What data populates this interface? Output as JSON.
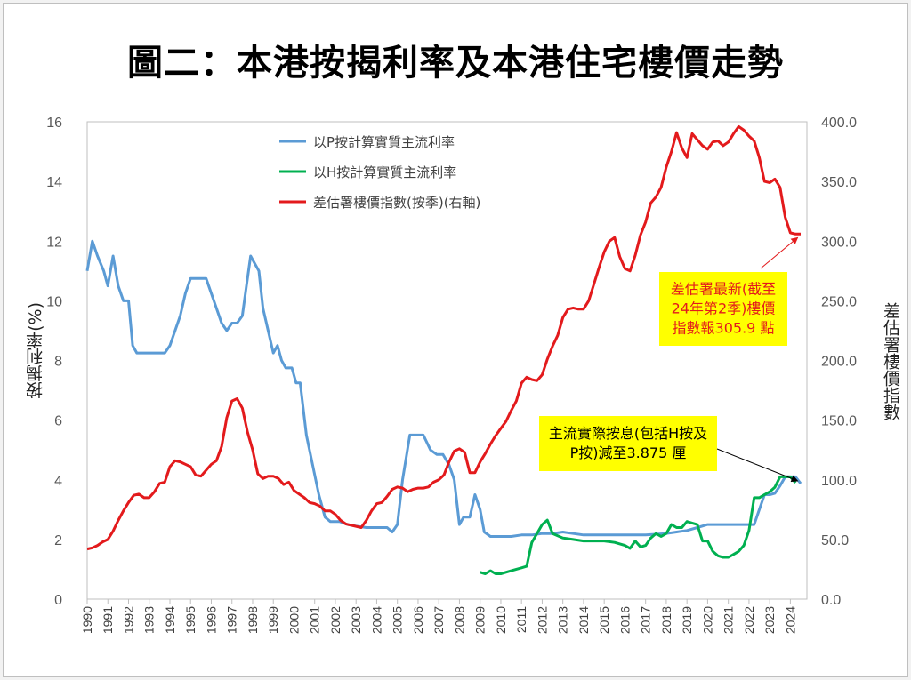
{
  "title": "圖二：本港按揭利率及本港住宅樓價走勢",
  "chart_data": {
    "type": "line",
    "ylabel": "按揭利率(%)",
    "y2label": "差估署樓價指數",
    "ylim": [
      0,
      16
    ],
    "y2lim": [
      0,
      400
    ],
    "yticks": [
      "0",
      "2",
      "4",
      "6",
      "8",
      "10",
      "12",
      "14",
      "16"
    ],
    "y2ticks": [
      "0.0",
      "50.0",
      "100.0",
      "150.0",
      "200.0",
      "250.0",
      "300.0",
      "350.0",
      "400.0"
    ],
    "xlim": [
      1990,
      2024.8
    ],
    "xticks": [
      "1990",
      "1991",
      "1992",
      "1993",
      "1994",
      "1995",
      "1996",
      "1997",
      "1998",
      "1999",
      "2000",
      "2001",
      "2002",
      "2003",
      "2004",
      "2005",
      "2006",
      "2007",
      "2008",
      "2009",
      "2010",
      "2011",
      "2012",
      "2013",
      "2014",
      "2015",
      "2016",
      "2017",
      "2018",
      "2019",
      "2020",
      "2021",
      "2022",
      "2023",
      "2024"
    ],
    "grid": false,
    "legend_position": "top-left",
    "series": [
      {
        "name": "以P按計算實質主流利率",
        "color": "#5b9bd5",
        "axis": "left",
        "points": [
          [
            1990,
            11
          ],
          [
            1990.25,
            12
          ],
          [
            1990.5,
            11.5
          ],
          [
            1990.8,
            11
          ],
          [
            1991,
            10.5
          ],
          [
            1991.25,
            11.5
          ],
          [
            1991.5,
            10.5
          ],
          [
            1991.75,
            10
          ],
          [
            1992,
            10
          ],
          [
            1992.2,
            8.5
          ],
          [
            1992.4,
            8.25
          ],
          [
            1993,
            8.25
          ],
          [
            1993.5,
            8.25
          ],
          [
            1993.75,
            8.25
          ],
          [
            1994,
            8.5
          ],
          [
            1994.5,
            9.5
          ],
          [
            1994.75,
            10.25
          ],
          [
            1995,
            10.75
          ],
          [
            1995.5,
            10.75
          ],
          [
            1995.75,
            10.75
          ],
          [
            1996,
            10.25
          ],
          [
            1996.25,
            9.75
          ],
          [
            1996.5,
            9.25
          ],
          [
            1996.75,
            9
          ],
          [
            1997,
            9.25
          ],
          [
            1997.25,
            9.25
          ],
          [
            1997.5,
            9.5
          ],
          [
            1997.7,
            10.5
          ],
          [
            1997.9,
            11.5
          ],
          [
            1998.1,
            11.25
          ],
          [
            1998.3,
            11
          ],
          [
            1998.5,
            9.75
          ],
          [
            1998.75,
            9
          ],
          [
            1999,
            8.25
          ],
          [
            1999.2,
            8.5
          ],
          [
            1999.4,
            8
          ],
          [
            1999.6,
            7.75
          ],
          [
            1999.9,
            7.75
          ],
          [
            2000.1,
            7.25
          ],
          [
            2000.3,
            7.25
          ],
          [
            2000.6,
            5.5
          ],
          [
            2000.9,
            4.5
          ],
          [
            2001.2,
            3.5
          ],
          [
            2001.5,
            2.75
          ],
          [
            2001.75,
            2.6
          ],
          [
            2002.2,
            2.6
          ],
          [
            2002.6,
            2.5
          ],
          [
            2003,
            2.45
          ],
          [
            2003.5,
            2.4
          ],
          [
            2004,
            2.4
          ],
          [
            2004.5,
            2.4
          ],
          [
            2004.75,
            2.25
          ],
          [
            2005,
            2.5
          ],
          [
            2005.25,
            4
          ],
          [
            2005.6,
            5.5
          ],
          [
            2006,
            5.5
          ],
          [
            2006.25,
            5.5
          ],
          [
            2006.6,
            5.0
          ],
          [
            2006.9,
            4.85
          ],
          [
            2007.2,
            4.85
          ],
          [
            2007.5,
            4.5
          ],
          [
            2007.75,
            4
          ],
          [
            2008,
            2.5
          ],
          [
            2008.2,
            2.75
          ],
          [
            2008.5,
            2.75
          ],
          [
            2008.75,
            3.5
          ],
          [
            2009,
            3
          ],
          [
            2009.2,
            2.25
          ],
          [
            2009.5,
            2.1
          ],
          [
            2010,
            2.1
          ],
          [
            2010.5,
            2.1
          ],
          [
            2011,
            2.15
          ],
          [
            2011.5,
            2.15
          ],
          [
            2012,
            2.2
          ],
          [
            2012.5,
            2.2
          ],
          [
            2013,
            2.25
          ],
          [
            2013.5,
            2.2
          ],
          [
            2014,
            2.15
          ],
          [
            2015,
            2.15
          ],
          [
            2016,
            2.15
          ],
          [
            2017,
            2.15
          ],
          [
            2018,
            2.2
          ],
          [
            2018.5,
            2.25
          ],
          [
            2019,
            2.3
          ],
          [
            2019.5,
            2.4
          ],
          [
            2020,
            2.5
          ],
          [
            2021,
            2.5
          ],
          [
            2022,
            2.5
          ],
          [
            2022.25,
            2.5
          ],
          [
            2022.5,
            3
          ],
          [
            2022.75,
            3.5
          ],
          [
            2023,
            3.5
          ],
          [
            2023.25,
            3.55
          ],
          [
            2023.5,
            3.8
          ],
          [
            2023.75,
            4.1
          ],
          [
            2024,
            4.1
          ],
          [
            2024.25,
            4.1
          ],
          [
            2024.5,
            3.875
          ]
        ]
      },
      {
        "name": "以H按計算實質主流利率",
        "color": "#00b050",
        "axis": "left",
        "points": [
          [
            2009,
            0.9
          ],
          [
            2009.25,
            0.85
          ],
          [
            2009.5,
            0.95
          ],
          [
            2009.75,
            0.85
          ],
          [
            2010,
            0.85
          ],
          [
            2010.5,
            0.95
          ],
          [
            2011,
            1.05
          ],
          [
            2011.25,
            1.1
          ],
          [
            2011.5,
            1.9
          ],
          [
            2011.75,
            2.2
          ],
          [
            2012,
            2.5
          ],
          [
            2012.25,
            2.65
          ],
          [
            2012.5,
            2.2
          ],
          [
            2013,
            2.05
          ],
          [
            2013.5,
            2.0
          ],
          [
            2014,
            1.95
          ],
          [
            2014.5,
            1.95
          ],
          [
            2015,
            1.95
          ],
          [
            2015.5,
            1.9
          ],
          [
            2016,
            1.8
          ],
          [
            2016.25,
            1.7
          ],
          [
            2016.5,
            1.95
          ],
          [
            2016.75,
            1.75
          ],
          [
            2017,
            1.8
          ],
          [
            2017.25,
            2.05
          ],
          [
            2017.5,
            2.2
          ],
          [
            2017.75,
            2.1
          ],
          [
            2018,
            2.2
          ],
          [
            2018.25,
            2.5
          ],
          [
            2018.5,
            2.4
          ],
          [
            2018.75,
            2.4
          ],
          [
            2019,
            2.6
          ],
          [
            2019.25,
            2.55
          ],
          [
            2019.5,
            2.5
          ],
          [
            2019.75,
            1.95
          ],
          [
            2020,
            1.95
          ],
          [
            2020.25,
            1.6
          ],
          [
            2020.5,
            1.45
          ],
          [
            2020.75,
            1.4
          ],
          [
            2021,
            1.4
          ],
          [
            2021.25,
            1.5
          ],
          [
            2021.5,
            1.6
          ],
          [
            2021.75,
            1.8
          ],
          [
            2022,
            2.3
          ],
          [
            2022.25,
            3.4
          ],
          [
            2022.5,
            3.4
          ],
          [
            2022.75,
            3.5
          ],
          [
            2023,
            3.6
          ],
          [
            2023.25,
            3.75
          ],
          [
            2023.5,
            4.1
          ],
          [
            2023.75,
            4.1
          ],
          [
            2024,
            4.1
          ],
          [
            2024.25,
            3.9
          ]
        ]
      },
      {
        "name": "差估署樓價指數(按季)(右軸)",
        "color": "#e31a1c",
        "axis": "right",
        "points": [
          [
            1990,
            42
          ],
          [
            1990.25,
            43
          ],
          [
            1990.5,
            45
          ],
          [
            1990.75,
            48
          ],
          [
            1991,
            50
          ],
          [
            1991.25,
            57
          ],
          [
            1991.5,
            66
          ],
          [
            1991.75,
            74
          ],
          [
            1992,
            81
          ],
          [
            1992.25,
            87
          ],
          [
            1992.5,
            88
          ],
          [
            1992.75,
            85
          ],
          [
            1993,
            85
          ],
          [
            1993.25,
            90
          ],
          [
            1993.5,
            97
          ],
          [
            1993.75,
            98
          ],
          [
            1994,
            111
          ],
          [
            1994.25,
            116
          ],
          [
            1994.5,
            115
          ],
          [
            1994.75,
            113
          ],
          [
            1995,
            111
          ],
          [
            1995.25,
            104
          ],
          [
            1995.5,
            103
          ],
          [
            1995.75,
            108
          ],
          [
            1996,
            113
          ],
          [
            1996.25,
            116
          ],
          [
            1996.5,
            128
          ],
          [
            1996.75,
            152
          ],
          [
            1997,
            166
          ],
          [
            1997.25,
            168
          ],
          [
            1997.5,
            160
          ],
          [
            1997.75,
            140
          ],
          [
            1998,
            125
          ],
          [
            1998.25,
            105
          ],
          [
            1998.5,
            101
          ],
          [
            1998.75,
            103
          ],
          [
            1999,
            103
          ],
          [
            1999.25,
            101
          ],
          [
            1999.5,
            96
          ],
          [
            1999.75,
            98
          ],
          [
            2000,
            91
          ],
          [
            2000.25,
            88
          ],
          [
            2000.5,
            85
          ],
          [
            2000.75,
            81
          ],
          [
            2001,
            80
          ],
          [
            2001.25,
            78
          ],
          [
            2001.5,
            74
          ],
          [
            2001.75,
            74
          ],
          [
            2002,
            71
          ],
          [
            2002.25,
            66
          ],
          [
            2002.5,
            63
          ],
          [
            2002.75,
            62
          ],
          [
            2003,
            61
          ],
          [
            2003.25,
            60
          ],
          [
            2003.5,
            66
          ],
          [
            2003.75,
            74
          ],
          [
            2004,
            80
          ],
          [
            2004.25,
            81
          ],
          [
            2004.5,
            86
          ],
          [
            2004.75,
            92
          ],
          [
            2005,
            94
          ],
          [
            2005.25,
            93
          ],
          [
            2005.5,
            90
          ],
          [
            2005.75,
            92
          ],
          [
            2006,
            93
          ],
          [
            2006.25,
            93
          ],
          [
            2006.5,
            94
          ],
          [
            2006.75,
            98
          ],
          [
            2007,
            100
          ],
          [
            2007.25,
            104
          ],
          [
            2007.5,
            115
          ],
          [
            2007.75,
            124
          ],
          [
            2008,
            126
          ],
          [
            2008.25,
            123
          ],
          [
            2008.5,
            106
          ],
          [
            2008.75,
            106
          ],
          [
            2009,
            115
          ],
          [
            2009.25,
            122
          ],
          [
            2009.5,
            130
          ],
          [
            2009.75,
            137
          ],
          [
            2010,
            143
          ],
          [
            2010.25,
            149
          ],
          [
            2010.5,
            158
          ],
          [
            2010.75,
            166
          ],
          [
            2011,
            181
          ],
          [
            2011.25,
            186
          ],
          [
            2011.5,
            184
          ],
          [
            2011.75,
            183
          ],
          [
            2012,
            188
          ],
          [
            2012.25,
            201
          ],
          [
            2012.5,
            212
          ],
          [
            2012.75,
            221
          ],
          [
            2013,
            236
          ],
          [
            2013.25,
            243
          ],
          [
            2013.5,
            244
          ],
          [
            2013.75,
            243
          ],
          [
            2014,
            243
          ],
          [
            2014.25,
            250
          ],
          [
            2014.5,
            264
          ],
          [
            2014.75,
            278
          ],
          [
            2015,
            291
          ],
          [
            2015.25,
            300
          ],
          [
            2015.5,
            303
          ],
          [
            2015.75,
            287
          ],
          [
            2016,
            277
          ],
          [
            2016.25,
            275
          ],
          [
            2016.5,
            288
          ],
          [
            2016.75,
            305
          ],
          [
            2017,
            316
          ],
          [
            2017.25,
            332
          ],
          [
            2017.5,
            337
          ],
          [
            2017.75,
            345
          ],
          [
            2018,
            362
          ],
          [
            2018.25,
            375
          ],
          [
            2018.5,
            391
          ],
          [
            2018.75,
            378
          ],
          [
            2019,
            370
          ],
          [
            2019.25,
            390
          ],
          [
            2019.5,
            385
          ],
          [
            2019.75,
            380
          ],
          [
            2020,
            377
          ],
          [
            2020.25,
            383
          ],
          [
            2020.5,
            384
          ],
          [
            2020.75,
            380
          ],
          [
            2021,
            383
          ],
          [
            2021.25,
            390
          ],
          [
            2021.5,
            396
          ],
          [
            2021.75,
            393
          ],
          [
            2022,
            388
          ],
          [
            2022.25,
            384
          ],
          [
            2022.5,
            370
          ],
          [
            2022.75,
            350
          ],
          [
            2023,
            349
          ],
          [
            2023.25,
            352
          ],
          [
            2023.5,
            345
          ],
          [
            2023.75,
            320
          ],
          [
            2024,
            307
          ],
          [
            2024.25,
            305.9
          ],
          [
            2024.5,
            305.9
          ]
        ]
      }
    ],
    "annotations": [
      {
        "text": "差估署最新(截至\n24年第2季)樓價\n指數報305.9 點",
        "color": "#e31a1c",
        "background": "#ffff00",
        "points_to": [
          2024.35,
          305.9
        ],
        "axis": "right"
      },
      {
        "text": "主流實際按息(包括H按及\nP按)減至3.875 厘",
        "color": "#000000",
        "background": "#ffff00",
        "points_to": [
          2024.35,
          3.875
        ],
        "axis": "left"
      }
    ]
  }
}
